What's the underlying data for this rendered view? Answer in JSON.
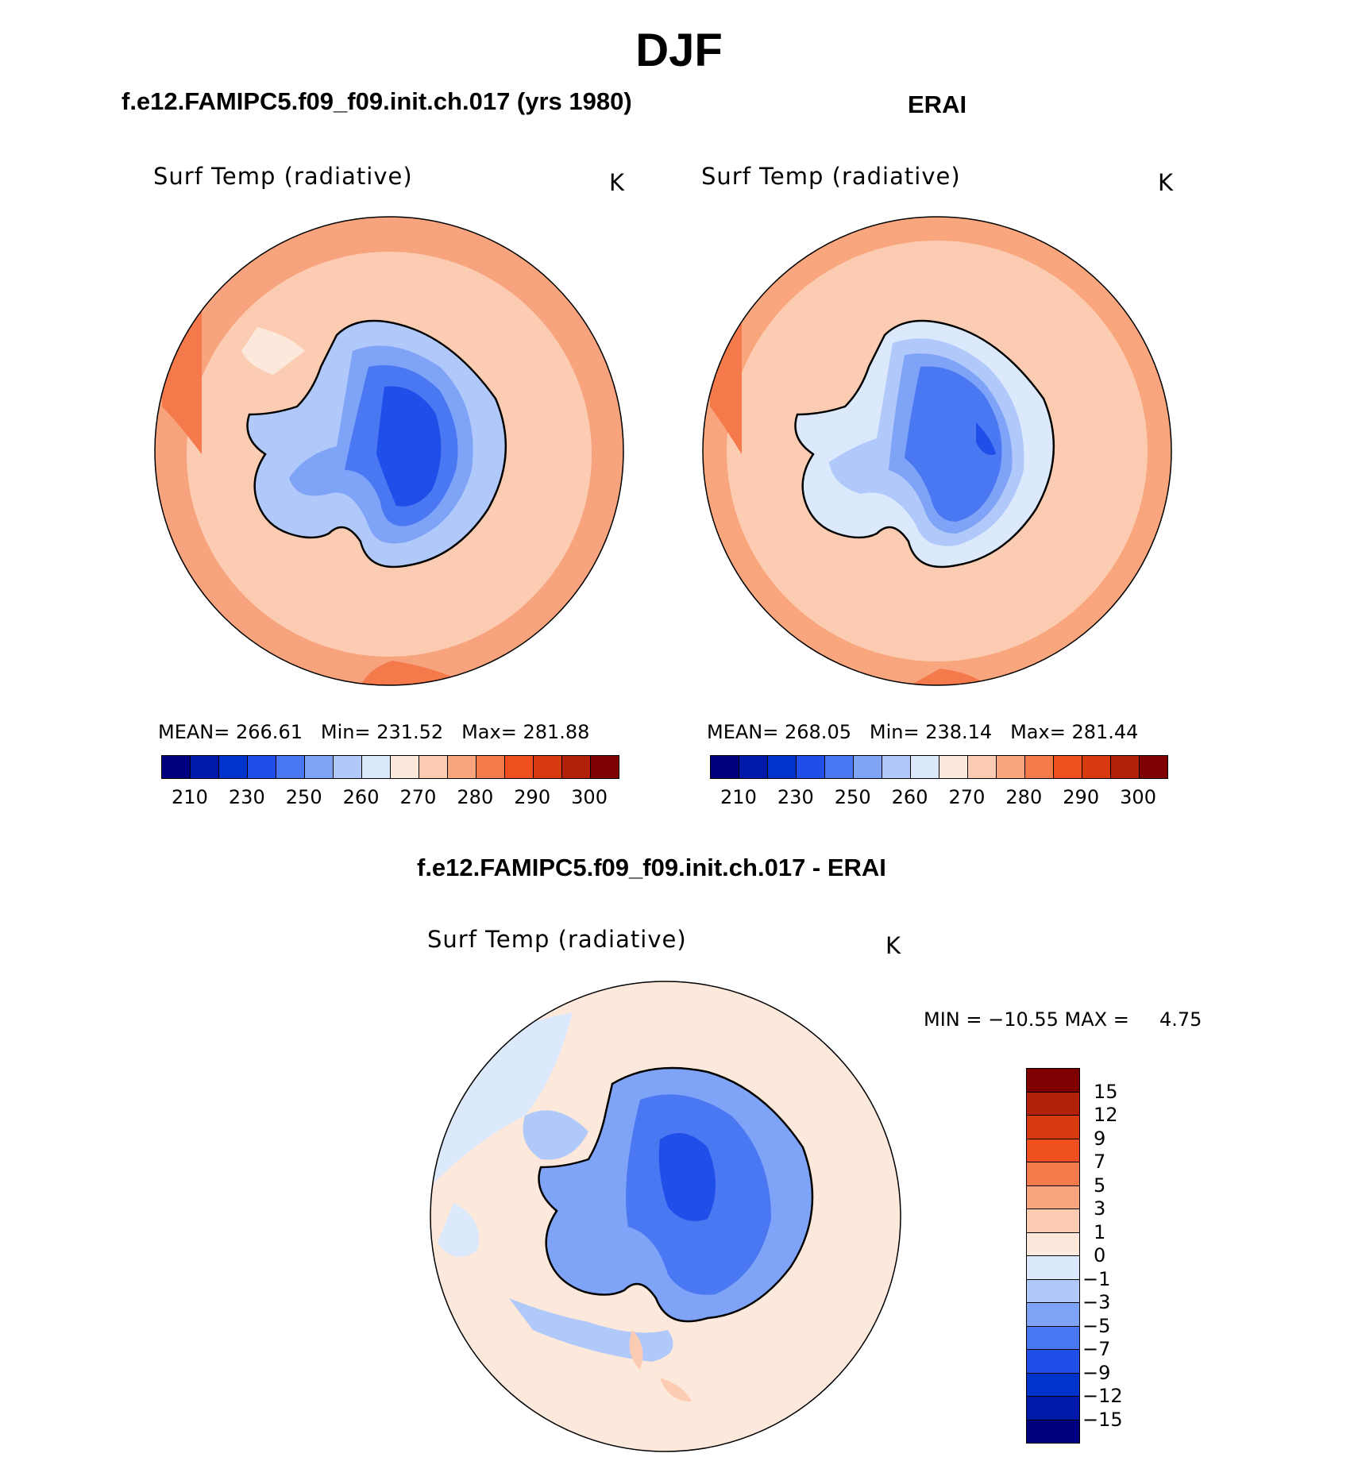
{
  "figure": {
    "title": "DJF"
  },
  "panel_model": {
    "title": "f.e12.FAMIPC5.f09_f09.init.ch.017 (yrs 1980)",
    "variable": "Surf Temp (radiative)",
    "units": "K",
    "mean_label": "MEAN=",
    "mean": "266.61",
    "min_label": "Min=",
    "min": "231.52",
    "max_label": "Max=",
    "max": "281.88"
  },
  "panel_obs": {
    "title": "ERAI",
    "variable": "Surf Temp (radiative)",
    "units": "K",
    "mean_label": "MEAN=",
    "mean": "268.05",
    "min_label": "Min=",
    "min": "238.14",
    "max_label": "Max=",
    "max": "281.44"
  },
  "panel_diff": {
    "title": "f.e12.FAMIPC5.f09_f09.init.ch.017 - ERAI",
    "variable": "Surf Temp (radiative)",
    "units": "K",
    "minmax": "MIN = −10.55 MAX =",
    "max_value": "4.75"
  },
  "colorbar_abs": {
    "colors": [
      "#00007f",
      "#0019a8",
      "#0033cc",
      "#1f4fe8",
      "#4a77f2",
      "#7fa3f7",
      "#b0c9fa",
      "#dce9fc",
      "#fde9dc",
      "#fcccb2",
      "#f9a67e",
      "#f57a4b",
      "#f0501f",
      "#d83a0f",
      "#b22009",
      "#7f0000"
    ],
    "ticks": [
      "210",
      "230",
      "250",
      "260",
      "270",
      "280",
      "290",
      "300"
    ]
  },
  "colorbar_diff": {
    "colors": [
      "#7f0000",
      "#b22009",
      "#d83a0f",
      "#f0501f",
      "#f57a4b",
      "#f9a67e",
      "#fcccb2",
      "#fde9dc",
      "#dce9fc",
      "#b0c9fa",
      "#7fa3f7",
      "#4a77f2",
      "#1f4fe8",
      "#0033cc",
      "#0019a8",
      "#00007f"
    ],
    "ticks": [
      "15",
      "12",
      "9",
      "7",
      "5",
      "3",
      "1",
      "0",
      "−1",
      "−3",
      "−5",
      "−7",
      "−9",
      "−12",
      "−15"
    ]
  }
}
